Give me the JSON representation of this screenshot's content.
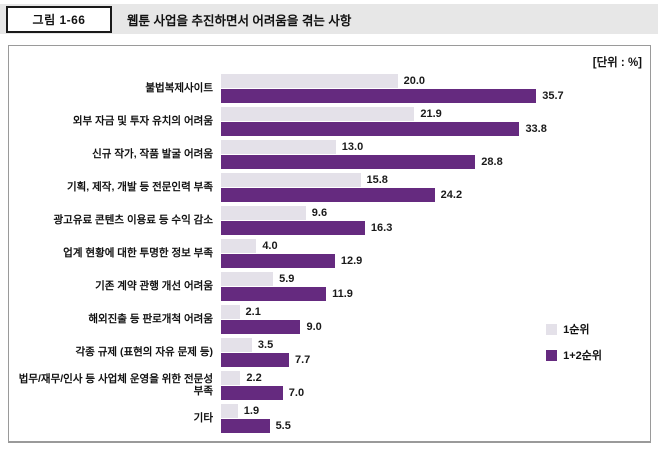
{
  "header": {
    "figure_label": "그림 1-66",
    "title": "웹툰 사업을 추진하면서 어려움을 겪는 사항"
  },
  "unit_label": "[단위 : %]",
  "chart_data": {
    "type": "bar",
    "orientation": "horizontal",
    "title": "웹툰 사업을 추진하면서 어려움을 겪는 사항",
    "unit": "%",
    "categories": [
      "불법복제사이트",
      "외부 자금 및 투자 유치의 어려움",
      "신규 작가, 작품 발굴 어려움",
      "기획, 제작, 개발 등 전문인력 부족",
      "광고유료 콘텐츠 이용료 등 수익 감소",
      "업계 현황에 대한 투명한 정보 부족",
      "기존 계약 관행 개선 어려움",
      "해외진출 등 판로개척 어려움",
      "각종 규제 (표현의 자유 문제 등)",
      "법무/재무/인사 등 사업체 운영을 위한 전문성 부족",
      "기타"
    ],
    "series": [
      {
        "name": "1순위",
        "color": "#e4e1e9",
        "values": [
          20.0,
          21.9,
          13.0,
          15.8,
          9.6,
          4.0,
          5.9,
          2.1,
          3.5,
          2.2,
          1.9
        ]
      },
      {
        "name": "1+2순위",
        "color": "#652a7f",
        "values": [
          35.7,
          33.8,
          28.8,
          24.2,
          16.3,
          12.9,
          11.9,
          9.0,
          7.7,
          7.0,
          5.5
        ]
      }
    ],
    "xlim": [
      0,
      47
    ],
    "grid": false,
    "legend_position": "right",
    "value_labels": true
  }
}
